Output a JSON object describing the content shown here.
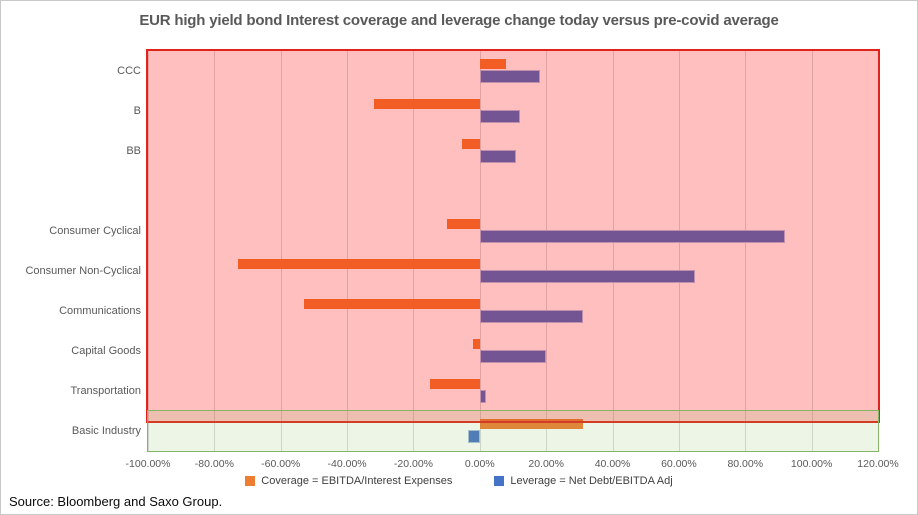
{
  "title": "EUR high yield bond Interest coverage and leverage change today versus pre-covid average",
  "source": "Source: Bloomberg and Saxo Group.",
  "legend": [
    {
      "label": "Coverage = EBITDA/Interest Expenses",
      "color": "#ED7D31"
    },
    {
      "label": "Leverage = Net Debt/EBITDA Adj",
      "color": "#4472C4"
    }
  ],
  "chart_data": {
    "type": "bar",
    "orientation": "horizontal",
    "title": "EUR high yield bond Interest coverage and leverage change today versus pre-covid average",
    "categories": [
      "CCC",
      "B",
      "BB",
      "",
      "Consumer Cyclical",
      "Consumer Non-Cyclical",
      "Communications",
      "Capital Goods",
      "Transportation",
      "Basic Industry"
    ],
    "series": [
      {
        "name": "Coverage = EBITDA/Interest Expenses",
        "color": "#ED7D31",
        "values": [
          8,
          -32,
          -5.5,
          null,
          -10,
          -73,
          -53,
          -2,
          -15,
          31
        ]
      },
      {
        "name": "Leverage = Net Debt/EBITDA Adj",
        "color": "#4472C4",
        "values": [
          18,
          12,
          11,
          null,
          92,
          65,
          31,
          20,
          2,
          -3.5
        ]
      }
    ],
    "xlim": [
      -100,
      120
    ],
    "xtick_step": 20,
    "xtick_labels": [
      "-100.00%",
      "-80.00%",
      "-60.00%",
      "-40.00%",
      "-20.00%",
      "0.00%",
      "20.00%",
      "40.00%",
      "60.00%",
      "80.00%",
      "100.00%",
      "120.00%"
    ],
    "grid": true,
    "gridline_color": "#d9d9d9",
    "legend_position": "bottom",
    "zones": [
      {
        "name": "deteriorating-zone",
        "from_category": "CCC",
        "to_category": "Transportation",
        "fill": "rgba(255,0,0,0.25)",
        "border": "#E0241B"
      },
      {
        "name": "improving-zone",
        "from_category": "Basic Industry",
        "to_category": "Basic Industry",
        "fill": "rgba(140,195,100,0.16)",
        "border": "#84B566"
      }
    ]
  }
}
